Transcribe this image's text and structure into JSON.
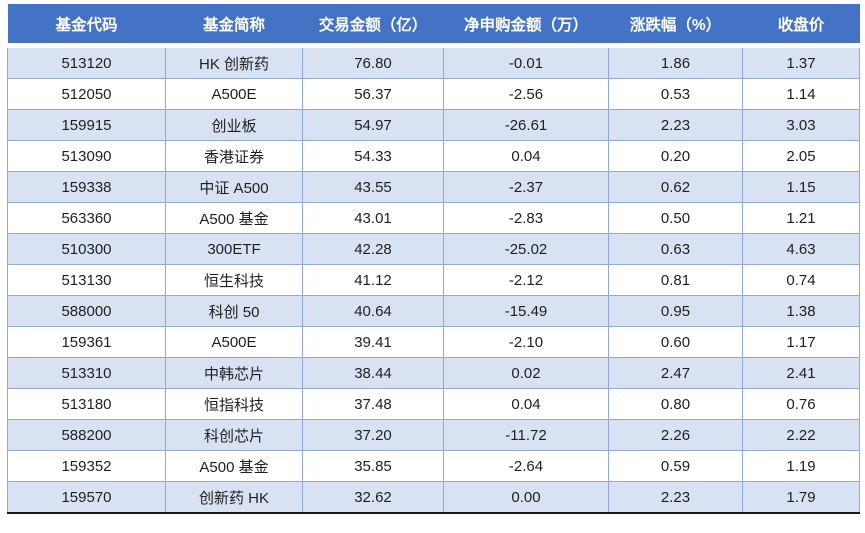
{
  "colors": {
    "header_bg": "#4472C4",
    "header_text": "#FFFFFF",
    "band_row": "#D9E2F3",
    "white_row": "#FFFFFF",
    "grid": "#8EAADB",
    "bottom_border": "#1A1A1A",
    "text": "#1F1F1F"
  },
  "chart_data": {
    "type": "table",
    "title": "",
    "banding": "odd-rows-light-blue",
    "columns": [
      "基金代码",
      "基金简称",
      "交易金额（亿）",
      "净申购金额（万）",
      "涨跌幅（%）",
      "收盘价"
    ],
    "rows": [
      [
        "513120",
        "HK 创新药",
        "76.80",
        "-0.01",
        "1.86",
        "1.37"
      ],
      [
        "512050",
        "A500E",
        "56.37",
        "-2.56",
        "0.53",
        "1.14"
      ],
      [
        "159915",
        "创业板",
        "54.97",
        "-26.61",
        "2.23",
        "3.03"
      ],
      [
        "513090",
        "香港证券",
        "54.33",
        "0.04",
        "0.20",
        "2.05"
      ],
      [
        "159338",
        "中证 A500",
        "43.55",
        "-2.37",
        "0.62",
        "1.15"
      ],
      [
        "563360",
        "A500 基金",
        "43.01",
        "-2.83",
        "0.50",
        "1.21"
      ],
      [
        "510300",
        "300ETF",
        "42.28",
        "-25.02",
        "0.63",
        "4.63"
      ],
      [
        "513130",
        "恒生科技",
        "41.12",
        "-2.12",
        "0.81",
        "0.74"
      ],
      [
        "588000",
        "科创 50",
        "40.64",
        "-15.49",
        "0.95",
        "1.38"
      ],
      [
        "159361",
        "A500E",
        "39.41",
        "-2.10",
        "0.60",
        "1.17"
      ],
      [
        "513310",
        "中韩芯片",
        "38.44",
        "0.02",
        "2.47",
        "2.41"
      ],
      [
        "513180",
        "恒指科技",
        "37.48",
        "0.04",
        "0.80",
        "0.76"
      ],
      [
        "588200",
        "科创芯片",
        "37.20",
        "-11.72",
        "2.26",
        "2.22"
      ],
      [
        "159352",
        "A500 基金",
        "35.85",
        "-2.64",
        "0.59",
        "1.19"
      ],
      [
        "159570",
        "创新药 HK",
        "32.62",
        "0.00",
        "2.23",
        "1.79"
      ]
    ]
  }
}
